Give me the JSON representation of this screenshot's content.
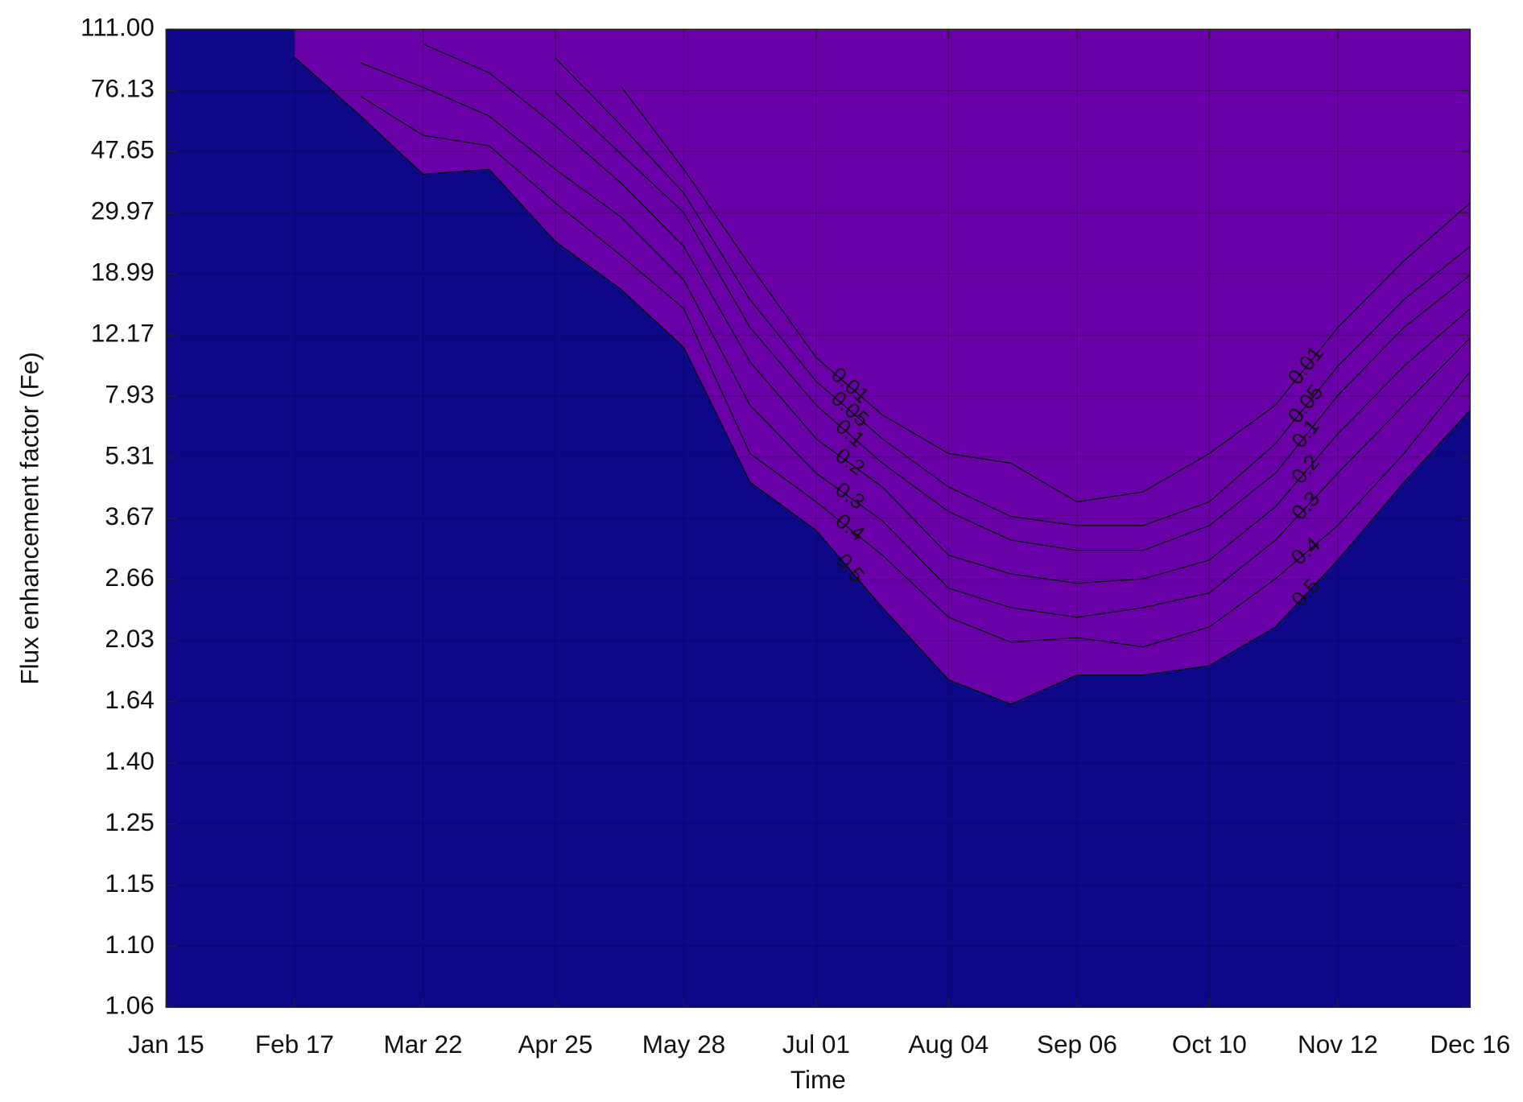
{
  "chart_data": {
    "type": "contourf",
    "xlabel": "Time",
    "ylabel": "Flux enhancement factor (Fe)",
    "x": [
      15,
      32,
      48,
      65,
      81,
      98,
      115,
      132,
      148,
      165,
      182,
      199,
      216,
      232,
      249,
      266,
      283,
      300,
      316,
      333,
      350
    ],
    "xlim": [
      15,
      350
    ],
    "xticks": [
      {
        "value": 15,
        "label": "Jan 15"
      },
      {
        "value": 48,
        "label": "Feb 17"
      },
      {
        "value": 81,
        "label": "Mar 22"
      },
      {
        "value": 115,
        "label": "Apr 25"
      },
      {
        "value": 148,
        "label": "May 28"
      },
      {
        "value": 182,
        "label": "Jul 01"
      },
      {
        "value": 216,
        "label": "Aug 04"
      },
      {
        "value": 249,
        "label": "Sep 06"
      },
      {
        "value": 283,
        "label": "Oct 10"
      },
      {
        "value": 316,
        "label": "Nov 12"
      },
      {
        "value": 350,
        "label": "Dec 16"
      }
    ],
    "ylim": [
      1.06,
      111
    ],
    "yticks": [
      1.06,
      {
        "value": 1.1,
        "label": "1.10"
      },
      1.15,
      1.25,
      {
        "value": 1.4,
        "label": "1.40"
      },
      1.64,
      2.03,
      2.66,
      3.67,
      5.31,
      7.93,
      12.17,
      18.99,
      29.97,
      47.65,
      76.13,
      {
        "value": 111,
        "label": "111.00"
      }
    ],
    "yscale": "ticks",
    "grid": true,
    "background": "#0d0887",
    "series": [
      {
        "name": "0.5",
        "color": "#6a00a8",
        "values": [
          null,
          null,
          95,
          64.2,
          41.1,
          42.5,
          24.8,
          17.2,
          11.3,
          4.64,
          3.47,
          2.37,
          1.78,
          1.63,
          1.81,
          1.81,
          1.87,
          2.17,
          2.98,
          4.64,
          7.33
        ]
      },
      {
        "name": "0.4",
        "color": "#b12a90",
        "values": [
          null,
          null,
          null,
          73.3,
          55.2,
          50.3,
          32.8,
          22.2,
          15.1,
          5.47,
          4.11,
          3.06,
          2.27,
          2.02,
          2.06,
          1.99,
          2.17,
          2.67,
          3.55,
          5.47,
          9.63
        ]
      },
      {
        "name": "0.3",
        "color": "#e16462",
        "values": [
          null,
          null,
          null,
          91.8,
          77.9,
          64.2,
          42.5,
          29.1,
          18.3,
          7.54,
          4.88,
          3.63,
          2.57,
          2.37,
          2.27,
          2.37,
          2.52,
          3.31,
          4.88,
          7.54,
          11.96
        ]
      },
      {
        "name": "0.2",
        "color": "#f9a03f",
        "values": [
          null,
          null,
          null,
          null,
          102.6,
          86.2,
          59.6,
          38.4,
          23.9,
          10.3,
          6.1,
          4.51,
          3.06,
          2.75,
          2.62,
          2.67,
          2.98,
          3.98,
          6.31,
          10.0,
          15.1
        ]
      },
      {
        "name": "0.1",
        "color": "#fccd25",
        "values": [
          null,
          null,
          null,
          null,
          null,
          null,
          75.3,
          46.8,
          29.97,
          13.0,
          7.54,
          5.15,
          3.85,
          3.31,
          3.14,
          3.14,
          3.55,
          4.88,
          7.97,
          13.0,
          18.85
        ]
      },
      {
        "name": "0.05",
        "color": "#f5e64a",
        "values": [
          null,
          null,
          null,
          null,
          null,
          null,
          94.6,
          59.6,
          35.6,
          16.1,
          8.95,
          6.1,
          4.51,
          3.72,
          3.55,
          3.55,
          4.11,
          5.89,
          10.0,
          16.1,
          23.9
        ]
      },
      {
        "name": "0.01",
        "color": "#eff723",
        "values": [
          null,
          null,
          null,
          null,
          null,
          null,
          null,
          77.9,
          42.5,
          20.5,
          10.6,
          7.12,
          5.47,
          5.15,
          4.11,
          4.38,
          5.47,
          7.54,
          13.0,
          21.3,
          32.8
        ]
      }
    ]
  }
}
